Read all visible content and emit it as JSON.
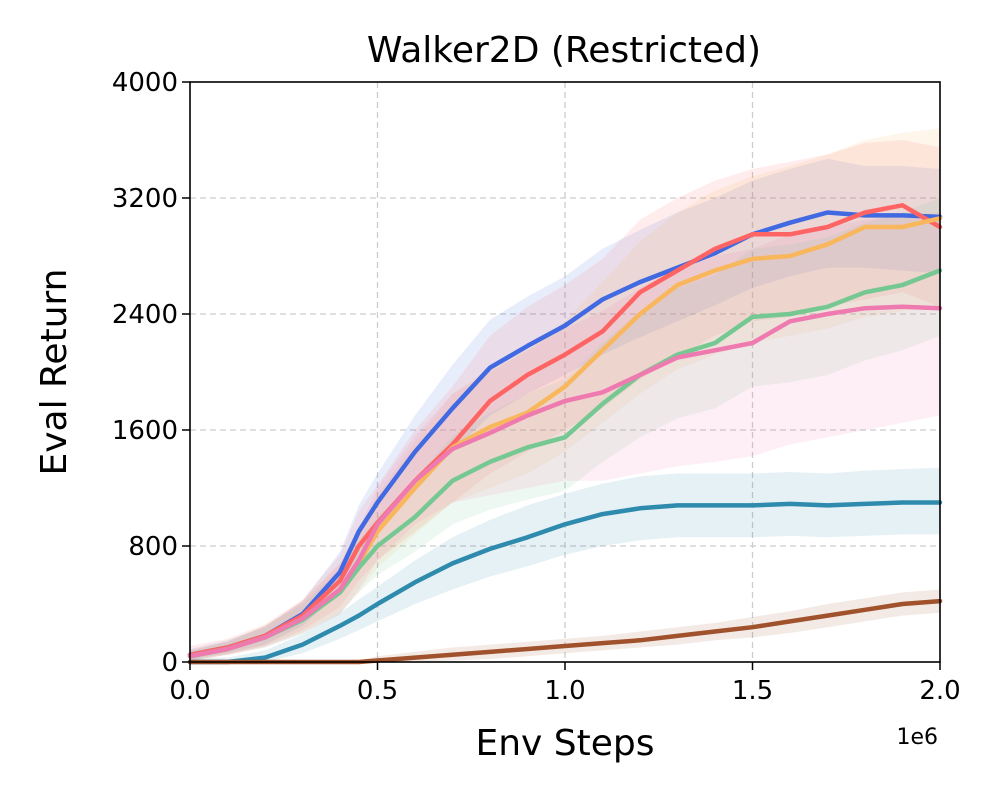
{
  "chart_data": {
    "type": "line",
    "title": "Walker2D (Restricted)",
    "xlabel": "Env Steps",
    "ylabel": "Eval Return",
    "x_offset_label": "1e6",
    "xlim": [
      0,
      2.0
    ],
    "ylim": [
      0,
      4000
    ],
    "xticks": [
      0.0,
      0.5,
      1.0,
      1.5,
      2.0
    ],
    "xtick_labels": [
      "0.0",
      "0.5",
      "1.0",
      "1.5",
      "2.0"
    ],
    "yticks": [
      0,
      800,
      1600,
      2400,
      3200,
      4000
    ],
    "ytick_labels": [
      "0",
      "800",
      "1600",
      "2400",
      "3200",
      "4000"
    ],
    "grid": true,
    "x": [
      0.0,
      0.1,
      0.2,
      0.3,
      0.4,
      0.45,
      0.5,
      0.6,
      0.7,
      0.8,
      0.9,
      1.0,
      1.1,
      1.2,
      1.3,
      1.4,
      1.5,
      1.6,
      1.7,
      1.8,
      1.9,
      2.0
    ],
    "series": [
      {
        "name": "blue",
        "color": "#4169e1",
        "values": [
          50,
          100,
          180,
          330,
          620,
          900,
          1100,
          1450,
          1750,
          2030,
          2180,
          2320,
          2500,
          2620,
          2720,
          2820,
          2950,
          3030,
          3100,
          3080,
          3080,
          3070
        ],
        "lower": [
          20,
          60,
          120,
          250,
          480,
          700,
          900,
          1200,
          1450,
          1700,
          1850,
          1980,
          2120,
          2240,
          2350,
          2460,
          2580,
          2660,
          2720,
          2720,
          2700,
          2680
        ],
        "upper": [
          90,
          150,
          240,
          420,
          760,
          1080,
          1300,
          1700,
          2050,
          2360,
          2520,
          2660,
          2850,
          2980,
          3100,
          3200,
          3320,
          3400,
          3470,
          3420,
          3420,
          3400
        ]
      },
      {
        "name": "red",
        "color": "#ff6464",
        "values": [
          50,
          100,
          180,
          320,
          560,
          800,
          960,
          1250,
          1500,
          1800,
          1980,
          2120,
          2280,
          2550,
          2700,
          2850,
          2950,
          2950,
          3000,
          3100,
          3150,
          3000
        ],
        "lower": [
          10,
          50,
          110,
          220,
          380,
          560,
          700,
          900,
          1100,
          1300,
          1450,
          1600,
          1750,
          1950,
          2100,
          2250,
          2350,
          2380,
          2450,
          2500,
          2550,
          2450
        ],
        "upper": [
          110,
          160,
          260,
          430,
          740,
          1040,
          1220,
          1600,
          1900,
          2250,
          2450,
          2600,
          2780,
          3050,
          3200,
          3320,
          3400,
          3450,
          3500,
          3580,
          3600,
          3550
        ]
      },
      {
        "name": "orange",
        "color": "#f8b75c",
        "values": [
          40,
          90,
          170,
          300,
          500,
          680,
          900,
          1200,
          1480,
          1620,
          1720,
          1900,
          2150,
          2400,
          2600,
          2700,
          2780,
          2800,
          2880,
          3000,
          3000,
          3060
        ],
        "lower": [
          10,
          50,
          110,
          200,
          340,
          480,
          650,
          880,
          1100,
          1200,
          1300,
          1450,
          1650,
          1850,
          2020,
          2120,
          2200,
          2250,
          2300,
          2380,
          2420,
          2450
        ],
        "upper": [
          80,
          140,
          250,
          420,
          680,
          900,
          1150,
          1520,
          1850,
          2030,
          2150,
          2350,
          2620,
          2900,
          3100,
          3250,
          3350,
          3420,
          3500,
          3600,
          3650,
          3680
        ]
      },
      {
        "name": "green",
        "color": "#76c893",
        "values": [
          40,
          90,
          170,
          290,
          480,
          650,
          800,
          1000,
          1250,
          1380,
          1480,
          1550,
          1780,
          1980,
          2120,
          2200,
          2380,
          2400,
          2450,
          2550,
          2600,
          2700
        ],
        "lower": [
          10,
          50,
          100,
          190,
          330,
          480,
          600,
          760,
          950,
          1050,
          1120,
          1180,
          1380,
          1550,
          1680,
          1750,
          1900,
          1930,
          1980,
          2080,
          2150,
          2250
        ],
        "upper": [
          80,
          140,
          250,
          400,
          640,
          840,
          1000,
          1260,
          1560,
          1720,
          1850,
          1950,
          2200,
          2420,
          2580,
          2670,
          2850,
          2880,
          2930,
          3030,
          3100,
          3200
        ]
      },
      {
        "name": "pink",
        "color": "#ee7ab0",
        "values": [
          40,
          90,
          170,
          300,
          500,
          700,
          950,
          1250,
          1470,
          1580,
          1700,
          1800,
          1860,
          1980,
          2100,
          2150,
          2200,
          2350,
          2400,
          2440,
          2450,
          2440
        ],
        "lower": [
          10,
          50,
          100,
          200,
          330,
          500,
          700,
          950,
          1100,
          1150,
          1200,
          1250,
          1250,
          1300,
          1350,
          1380,
          1420,
          1500,
          1550,
          1600,
          1650,
          1700
        ],
        "upper": [
          80,
          140,
          250,
          420,
          680,
          920,
          1200,
          1560,
          1850,
          2000,
          2150,
          2300,
          2420,
          2580,
          2720,
          2800,
          2850,
          2950,
          3000,
          3050,
          3080,
          3100
        ]
      },
      {
        "name": "teal",
        "color": "#2e8bad",
        "values": [
          0,
          0,
          30,
          120,
          250,
          320,
          400,
          550,
          680,
          780,
          860,
          950,
          1020,
          1060,
          1080,
          1080,
          1080,
          1090,
          1080,
          1090,
          1100,
          1100
        ],
        "lower": [
          0,
          0,
          0,
          60,
          160,
          220,
          280,
          400,
          500,
          590,
          660,
          740,
          800,
          840,
          860,
          860,
          860,
          870,
          860,
          870,
          880,
          880
        ],
        "upper": [
          30,
          30,
          80,
          190,
          340,
          430,
          520,
          700,
          860,
          980,
          1080,
          1160,
          1230,
          1280,
          1300,
          1300,
          1300,
          1310,
          1300,
          1320,
          1330,
          1340
        ]
      },
      {
        "name": "brown",
        "color": "#a0522d",
        "values": [
          0,
          0,
          0,
          0,
          0,
          0,
          10,
          30,
          50,
          70,
          90,
          110,
          130,
          150,
          180,
          210,
          240,
          280,
          320,
          360,
          400,
          420
        ],
        "lower": [
          0,
          0,
          0,
          0,
          0,
          0,
          0,
          0,
          10,
          20,
          40,
          60,
          80,
          100,
          120,
          150,
          170,
          200,
          240,
          280,
          320,
          340
        ],
        "upper": [
          0,
          0,
          0,
          0,
          0,
          10,
          40,
          70,
          100,
          120,
          140,
          160,
          180,
          210,
          240,
          270,
          310,
          350,
          400,
          440,
          480,
          500
        ]
      }
    ]
  }
}
